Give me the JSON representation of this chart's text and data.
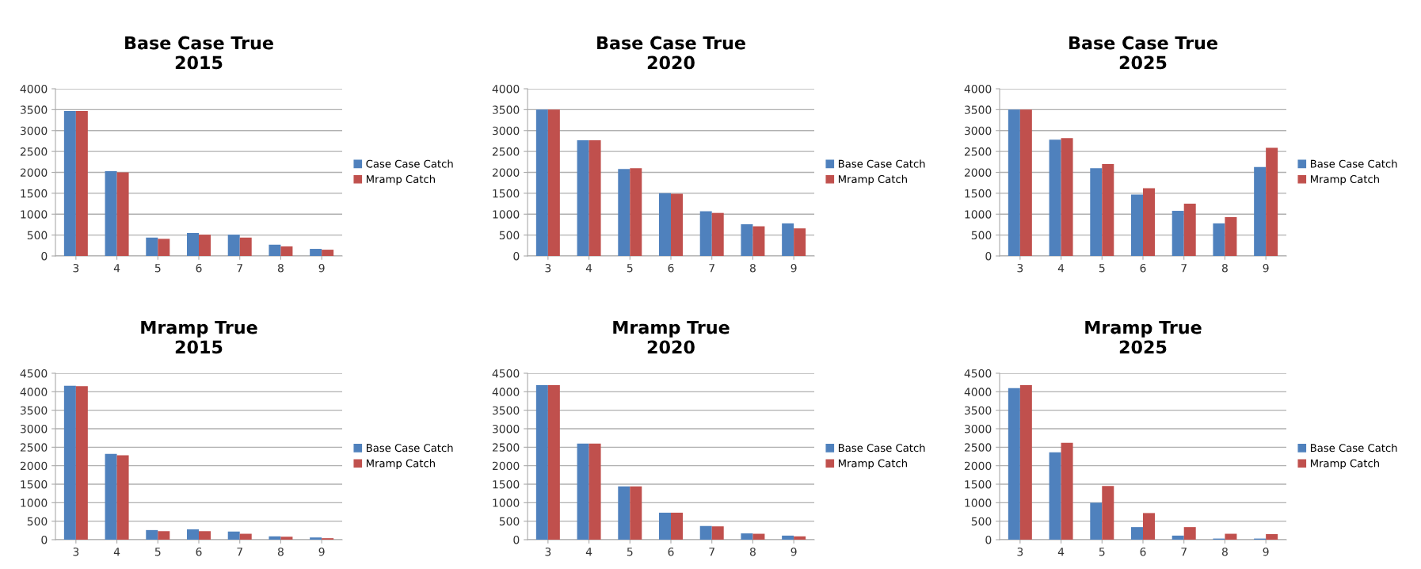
{
  "chart_data": [
    {
      "type": "bar",
      "title": "Base Case True\n2015",
      "categories": [
        "3",
        "4",
        "5",
        "6",
        "7",
        "8",
        "9"
      ],
      "ylim": [
        0,
        4000
      ],
      "yticks": [
        0,
        500,
        1000,
        1500,
        2000,
        2500,
        3000,
        3500,
        4000
      ],
      "grid": "y",
      "legend": "right",
      "series": [
        {
          "name": "Case Case Catch",
          "color": "#4f81bd",
          "values": [
            3470,
            2030,
            440,
            550,
            510,
            270,
            170
          ]
        },
        {
          "name": "Mramp Catch",
          "color": "#c0504d",
          "values": [
            3470,
            2000,
            410,
            510,
            440,
            230,
            150
          ]
        }
      ]
    },
    {
      "type": "bar",
      "title": "Base Case True\n2020",
      "categories": [
        "3",
        "4",
        "5",
        "6",
        "7",
        "8",
        "9"
      ],
      "ylim": [
        0,
        4000
      ],
      "yticks": [
        0,
        500,
        1000,
        1500,
        2000,
        2500,
        3000,
        3500,
        4000
      ],
      "grid": "y",
      "legend": "right",
      "series": [
        {
          "name": "Base Case Catch",
          "color": "#4f81bd",
          "values": [
            3500,
            2770,
            2080,
            1500,
            1070,
            760,
            780
          ]
        },
        {
          "name": "Mramp Catch",
          "color": "#c0504d",
          "values": [
            3500,
            2770,
            2100,
            1490,
            1030,
            710,
            660
          ]
        }
      ]
    },
    {
      "type": "bar",
      "title": "Base Case True\n2025",
      "categories": [
        "3",
        "4",
        "5",
        "6",
        "7",
        "8",
        "9"
      ],
      "ylim": [
        0,
        4000
      ],
      "yticks": [
        0,
        500,
        1000,
        1500,
        2000,
        2500,
        3000,
        3500,
        4000
      ],
      "grid": "y",
      "legend": "right",
      "series": [
        {
          "name": "Base Case Catch",
          "color": "#4f81bd",
          "values": [
            3500,
            2780,
            2100,
            1470,
            1080,
            780,
            2130
          ]
        },
        {
          "name": "Mramp Catch",
          "color": "#c0504d",
          "values": [
            3500,
            2820,
            2200,
            1620,
            1250,
            930,
            2590
          ]
        }
      ]
    },
    {
      "type": "bar",
      "title": "Mramp True\n2015",
      "categories": [
        "3",
        "4",
        "5",
        "6",
        "7",
        "8",
        "9"
      ],
      "ylim": [
        0,
        4500
      ],
      "yticks": [
        0,
        500,
        1000,
        1500,
        2000,
        2500,
        3000,
        3500,
        4000,
        4500
      ],
      "grid": "y",
      "legend": "right",
      "series": [
        {
          "name": "Base Case Catch",
          "color": "#4f81bd",
          "values": [
            4160,
            2320,
            260,
            280,
            220,
            90,
            60
          ]
        },
        {
          "name": "Mramp Catch",
          "color": "#c0504d",
          "values": [
            4150,
            2280,
            230,
            230,
            160,
            80,
            40
          ]
        }
      ]
    },
    {
      "type": "bar",
      "title": "Mramp True\n2020",
      "categories": [
        "3",
        "4",
        "5",
        "6",
        "7",
        "8",
        "9"
      ],
      "ylim": [
        0,
        4500
      ],
      "yticks": [
        0,
        500,
        1000,
        1500,
        2000,
        2500,
        3000,
        3500,
        4000,
        4500
      ],
      "grid": "y",
      "legend": "right",
      "series": [
        {
          "name": "Base Case Catch",
          "color": "#4f81bd",
          "values": [
            4180,
            2600,
            1440,
            730,
            370,
            170,
            110
          ]
        },
        {
          "name": "Mramp Catch",
          "color": "#c0504d",
          "values": [
            4180,
            2600,
            1440,
            730,
            360,
            160,
            90
          ]
        }
      ]
    },
    {
      "type": "bar",
      "title": "Mramp True\n2025",
      "categories": [
        "3",
        "4",
        "5",
        "6",
        "7",
        "8",
        "9"
      ],
      "ylim": [
        0,
        4500
      ],
      "yticks": [
        0,
        500,
        1000,
        1500,
        2000,
        2500,
        3000,
        3500,
        4000,
        4500
      ],
      "grid": "y",
      "legend": "right",
      "series": [
        {
          "name": "Base Case Catch",
          "color": "#4f81bd",
          "values": [
            4100,
            2360,
            1000,
            340,
            110,
            30,
            30
          ]
        },
        {
          "name": "Mramp Catch",
          "color": "#c0504d",
          "values": [
            4180,
            2620,
            1450,
            720,
            340,
            160,
            150
          ]
        }
      ]
    }
  ]
}
